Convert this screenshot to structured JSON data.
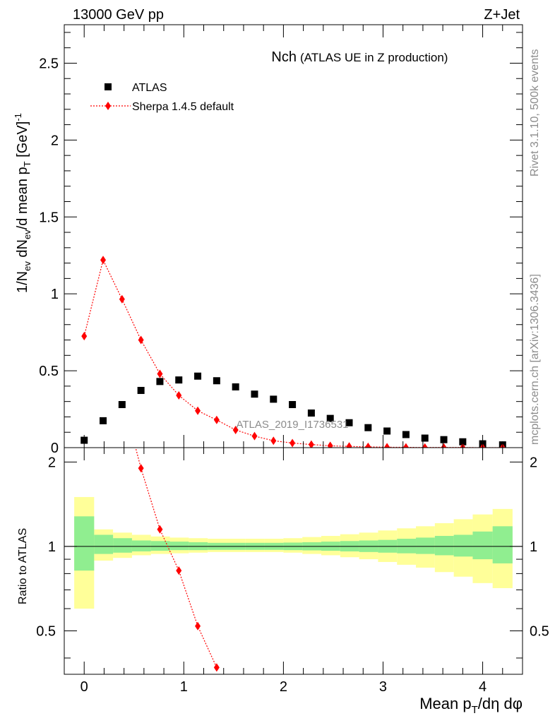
{
  "header": {
    "left": "13000 GeV pp",
    "right": "Z+Jet"
  },
  "side_labels": {
    "rivet": "Rivet 3.1.10,  500k events",
    "mcplots": "mcplots.cern.ch [arXiv:1306.3436]"
  },
  "watermark": "ATLAS_2019_I1736531",
  "chart_data": [
    {
      "type": "scatter",
      "panel": "main",
      "title": "Nch",
      "subtitle": "(ATLAS UE in Z production)",
      "ylabel": "1/N_ev dN_ev/d mean p_T [GeV]^-1",
      "xlim": [
        -0.2,
        4.4
      ],
      "ylim": [
        0,
        2.75
      ],
      "y_ticks": [
        "0",
        "0.5",
        "1",
        "1.5",
        "2",
        "2.5"
      ],
      "y_tick_values": [
        0,
        0.5,
        1,
        1.5,
        2,
        2.5
      ],
      "legend": [
        "ATLAS",
        "Sherpa 1.4.5 default"
      ],
      "legend_position": "top-left",
      "series": [
        {
          "name": "ATLAS",
          "marker": "square",
          "color": "#000000",
          "x": [
            0.0,
            0.19,
            0.38,
            0.57,
            0.76,
            0.95,
            1.14,
            1.33,
            1.52,
            1.71,
            1.9,
            2.09,
            2.28,
            2.47,
            2.66,
            2.85,
            3.04,
            3.23,
            3.42,
            3.61,
            3.8,
            4.0,
            4.2
          ],
          "y": [
            0.048,
            0.175,
            0.28,
            0.372,
            0.43,
            0.44,
            0.465,
            0.435,
            0.395,
            0.348,
            0.315,
            0.28,
            0.225,
            0.19,
            0.162,
            0.13,
            0.108,
            0.085,
            0.062,
            0.052,
            0.038,
            0.025,
            0.018
          ]
        },
        {
          "name": "Sherpa 1.4.5 default",
          "marker": "diamond",
          "color": "#ff0000",
          "x": [
            0.0,
            0.19,
            0.38,
            0.57,
            0.76,
            0.95,
            1.14,
            1.33,
            1.52,
            1.71,
            1.9,
            2.09,
            2.28,
            2.47,
            2.66,
            2.85,
            3.04,
            3.23,
            3.42,
            3.61,
            3.8,
            4.0,
            4.2
          ],
          "y": [
            0.725,
            1.22,
            0.965,
            0.7,
            0.48,
            0.34,
            0.24,
            0.18,
            0.115,
            0.075,
            0.045,
            0.03,
            0.02,
            0.012,
            0.008,
            0.005,
            0.003,
            0.002,
            0.001,
            0.001,
            0.001,
            0.0,
            0.0
          ]
        }
      ]
    },
    {
      "type": "ratio",
      "panel": "ratio",
      "ylabel": "Ratio to ATLAS",
      "xlabel": "Mean p_T/dη dφ",
      "xlim": [
        -0.2,
        4.4
      ],
      "ylim": [
        0.35,
        2.25
      ],
      "x_ticks": [
        "0",
        "1",
        "2",
        "3",
        "4"
      ],
      "x_tick_values": [
        0,
        1,
        2,
        3,
        4
      ],
      "y_ticks": [
        "0.5",
        "1",
        "2"
      ],
      "y_tick_values": [
        0.5,
        1,
        2
      ],
      "band_edges": [
        -0.1,
        0.1,
        0.29,
        0.48,
        0.67,
        0.86,
        1.05,
        1.24,
        1.43,
        1.62,
        1.81,
        2.0,
        2.19,
        2.38,
        2.57,
        2.76,
        2.95,
        3.14,
        3.33,
        3.52,
        3.71,
        3.9,
        4.1,
        4.3
      ],
      "stat_band": {
        "color": "#90ee90",
        "lo": [
          0.82,
          0.94,
          0.95,
          0.96,
          0.965,
          0.97,
          0.97,
          0.972,
          0.972,
          0.972,
          0.972,
          0.97,
          0.968,
          0.965,
          0.96,
          0.955,
          0.95,
          0.945,
          0.94,
          0.93,
          0.92,
          0.9,
          0.87
        ],
        "hi": [
          1.28,
          1.1,
          1.07,
          1.05,
          1.045,
          1.04,
          1.035,
          1.03,
          1.03,
          1.03,
          1.03,
          1.032,
          1.035,
          1.04,
          1.045,
          1.05,
          1.055,
          1.065,
          1.075,
          1.09,
          1.1,
          1.13,
          1.18
        ]
      },
      "total_band": {
        "color": "#ffff99",
        "lo": [
          0.6,
          0.89,
          0.91,
          0.93,
          0.94,
          0.945,
          0.95,
          0.955,
          0.955,
          0.955,
          0.955,
          0.95,
          0.94,
          0.93,
          0.915,
          0.9,
          0.88,
          0.86,
          0.84,
          0.81,
          0.78,
          0.74,
          0.71
        ],
        "hi": [
          1.5,
          1.15,
          1.12,
          1.1,
          1.085,
          1.075,
          1.07,
          1.065,
          1.065,
          1.065,
          1.065,
          1.07,
          1.08,
          1.09,
          1.105,
          1.12,
          1.14,
          1.16,
          1.18,
          1.21,
          1.25,
          1.3,
          1.36
        ]
      },
      "series": [
        {
          "name": "Sherpa 1.4.5 default",
          "color": "#ff0000",
          "x": [
            0.57,
            0.76,
            0.95,
            1.14,
            1.33
          ],
          "y": [
            1.9,
            1.15,
            0.82,
            0.52,
            0.37
          ]
        }
      ]
    }
  ]
}
